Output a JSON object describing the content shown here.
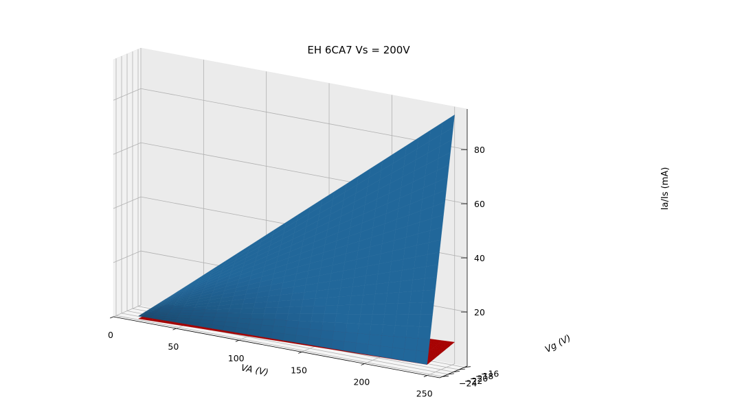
{
  "chart_data": {
    "type": "surface3d",
    "title": "EH 6CA7 Vs = 200V",
    "xlabel": "VA (V)",
    "ylabel": "Vg (V)",
    "zlabel": "Ia/Is (mA)",
    "xlim": [
      0,
      260
    ],
    "ylim": [
      -25,
      -15
    ],
    "zlim": [
      0,
      95
    ],
    "x_ticks": [
      0,
      50,
      100,
      150,
      200,
      250
    ],
    "x_tick_labels": [
      "0",
      "50",
      "100",
      "150",
      "200",
      "250"
    ],
    "y_ticks": [
      -24,
      -22,
      -20,
      -18,
      -16
    ],
    "y_tick_labels": [
      "−24",
      "−22",
      "−20",
      "−18",
      "−16"
    ],
    "z_ticks": [
      20,
      40,
      60,
      80
    ],
    "z_tick_labels": [
      "20",
      "40",
      "60",
      "80"
    ],
    "grid": true,
    "x_range": [
      20,
      250
    ],
    "y_range": [
      -25,
      -15
    ],
    "series": [
      {
        "color": "#cc0000",
        "description_values": "near-flat plane, rising slightly with VA and Vg",
        "corner_values": {
          "x_min_y_min": 1,
          "x_max_y_min": 4,
          "x_min_y_max": 2,
          "x_max_y_max": 8
        }
      },
      {
        "color": "#1f5f8f",
        "corner_values": {
          "x_min_y_min": 2,
          "x_max_y_min": 4,
          "x_min_y_max": 4,
          "x_max_y_max": 92
        }
      }
    ]
  }
}
